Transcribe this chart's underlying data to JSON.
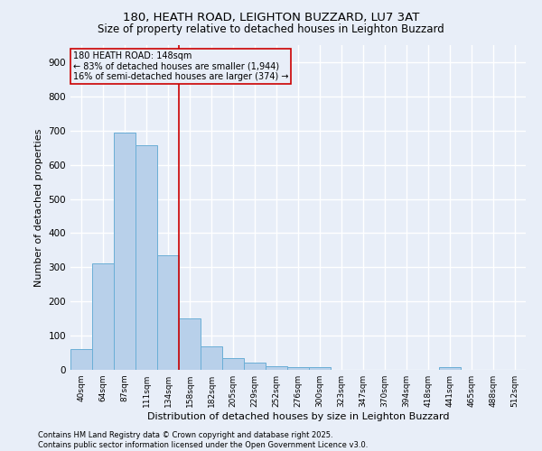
{
  "title1": "180, HEATH ROAD, LEIGHTON BUZZARD, LU7 3AT",
  "title2": "Size of property relative to detached houses in Leighton Buzzard",
  "xlabel": "Distribution of detached houses by size in Leighton Buzzard",
  "ylabel": "Number of detached properties",
  "categories": [
    "40sqm",
    "64sqm",
    "87sqm",
    "111sqm",
    "134sqm",
    "158sqm",
    "182sqm",
    "205sqm",
    "229sqm",
    "252sqm",
    "276sqm",
    "300sqm",
    "323sqm",
    "347sqm",
    "370sqm",
    "394sqm",
    "418sqm",
    "441sqm",
    "465sqm",
    "488sqm",
    "512sqm"
  ],
  "values": [
    60,
    312,
    693,
    658,
    335,
    150,
    68,
    35,
    20,
    10,
    8,
    8,
    0,
    0,
    0,
    0,
    0,
    8,
    0,
    0,
    0
  ],
  "bar_color": "#b8d0ea",
  "bar_edge_color": "#6aaed6",
  "annotation_box_color": "#cc0000",
  "annotation_line_color": "#cc0000",
  "property_label": "180 HEATH ROAD: 148sqm",
  "pct_smaller": "83% of detached houses are smaller (1,944)",
  "pct_larger": "16% of semi-detached houses are larger (374)",
  "vline_x_index": 4.5,
  "ylim": [
    0,
    950
  ],
  "yticks": [
    0,
    100,
    200,
    300,
    400,
    500,
    600,
    700,
    800,
    900
  ],
  "footer1": "Contains HM Land Registry data © Crown copyright and database right 2025.",
  "footer2": "Contains public sector information licensed under the Open Government Licence v3.0.",
  "bg_color": "#e8eef8",
  "grid_color": "#ffffff",
  "title_fontsize": 9.5,
  "subtitle_fontsize": 8.5,
  "tick_fontsize": 6.5,
  "ylabel_fontsize": 8,
  "xlabel_fontsize": 8,
  "annotation_fontsize": 7,
  "footer_fontsize": 6
}
